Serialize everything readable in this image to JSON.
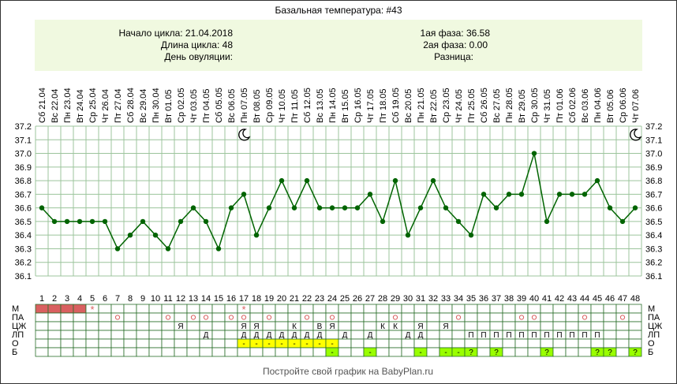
{
  "title": "Базальная температура: #43",
  "info": {
    "cycle_start": "Начало цикла: 21.04.2018",
    "cycle_length": "Длина цикла: 48",
    "ovulation_day": "День овуляции:",
    "phase1": "1ая фаза: 36.58",
    "phase2": "2ая фаза: 0.00",
    "difference": "Разница:"
  },
  "footer": "Постройте свой график на BabyPlan.ru",
  "colors": {
    "line": "#006400",
    "grid": "#9cc49c",
    "info_bg": "#f0f9e0",
    "menses": "#d96060",
    "marker": "#d96060",
    "highlight_yellow": "#ffff00",
    "highlight_green": "#99ff00"
  },
  "moon_icon_days": [
    17,
    48
  ],
  "chart_data": {
    "type": "line",
    "x": [
      1,
      2,
      3,
      4,
      5,
      6,
      7,
      8,
      9,
      10,
      11,
      12,
      13,
      14,
      15,
      16,
      17,
      18,
      19,
      20,
      21,
      22,
      23,
      24,
      25,
      26,
      27,
      28,
      29,
      30,
      31,
      32,
      33,
      34,
      35,
      36,
      37,
      38,
      39,
      40,
      41,
      42,
      43,
      44,
      45,
      46,
      47,
      48
    ],
    "dates": [
      "Сб 21.04",
      "Вс 22.04",
      "Пн 23.04",
      "Вт 24.04",
      "Ср 25.04",
      "Чт 26.04",
      "Пт 27.04",
      "Сб 28.04",
      "Вс 29.04",
      "Пн 30.04",
      "Вт 01.05",
      "Ср 02.05",
      "Чт 03.05",
      "Пт 04.05",
      "Сб 05.05",
      "Вс 06.05",
      "Пн 07.05",
      "Вт 08.05",
      "Ср 09.05",
      "Чт 10.05",
      "Пт 11.05",
      "Сб 12.05",
      "Вс 13.05",
      "Пн 14.05",
      "Вт 15.05",
      "Ср 16.05",
      "Чт 17.05",
      "Пт 18.05",
      "Сб 19.05",
      "Вс 20.05",
      "Пн 21.05",
      "Вт 22.05",
      "Ср 23.05",
      "Чт 24.05",
      "Пт 25.05",
      "Сб 26.05",
      "Вс 27.05",
      "Пн 28.05",
      "Вт 29.05",
      "Ср 30.05",
      "Чт 31.05",
      "Пт 01.06",
      "Сб 02.06",
      "Вс 03.06",
      "Пн 04.06",
      "Вт 05.06",
      "Ср 06.06",
      "Чт 07.06"
    ],
    "values": [
      36.6,
      36.5,
      36.5,
      36.5,
      36.5,
      36.5,
      36.3,
      36.4,
      36.5,
      36.4,
      36.3,
      36.5,
      36.6,
      36.5,
      36.3,
      36.6,
      36.7,
      36.4,
      36.6,
      36.8,
      36.6,
      36.8,
      36.6,
      36.6,
      36.6,
      36.6,
      36.7,
      36.5,
      36.8,
      36.4,
      36.6,
      36.8,
      36.6,
      36.5,
      36.4,
      36.7,
      36.6,
      36.7,
      36.7,
      37.0,
      36.5,
      36.7,
      36.7,
      36.7,
      36.8,
      36.6,
      36.5,
      36.6
    ],
    "y_ticks": [
      "37.2",
      "37.1",
      "37.0",
      "36.9",
      "36.8",
      "36.7",
      "36.6",
      "36.5",
      "36.4",
      "36.3",
      "36.2",
      "36.1"
    ],
    "ylim": [
      36.1,
      37.2
    ],
    "grid": true,
    "table": {
      "rows": [
        {
          "label": "М",
          "cells": {
            "1": "fill",
            "2": "fill",
            "3": "fill",
            "4": "fill",
            "5": "*",
            "17": "*"
          }
        },
        {
          "label": "ПА",
          "cells": {
            "7": "o",
            "11": "o",
            "13": "o",
            "14": "o",
            "16": "o",
            "17": "o",
            "19": "o",
            "22": "o",
            "24": "o",
            "29": "o",
            "34": "o",
            "39": "o",
            "40": "o",
            "44": "o",
            "47": "o"
          }
        },
        {
          "label": "ЦЖ",
          "cells": {
            "12": "Я",
            "17": "Я",
            "18": "Я",
            "21": "К",
            "23": "В",
            "24": "Я",
            "28": "К",
            "29": "К",
            "31": "Я",
            "33": "Я"
          }
        },
        {
          "label": "ЛП",
          "cells": {
            "14": "Д",
            "17": "Д",
            "18": "Д",
            "19": "Д",
            "20": "Д",
            "21": "Д",
            "22": "Д",
            "23": "Д",
            "25": "Д",
            "27": "Д",
            "30": "Д",
            "31": "Д",
            "35": "П",
            "36": "П",
            "37": "П",
            "38": "П",
            "39": "П",
            "40": "П",
            "41": "П",
            "42": "П",
            "43": "П",
            "44": "П",
            "45": "П"
          }
        },
        {
          "label": "О",
          "cells": {
            "17": "-",
            "18": "-",
            "19": "-",
            "20": "-",
            "21": "-",
            "22": "-",
            "23": "-",
            "24": "-"
          }
        },
        {
          "label": "Б",
          "cells": {
            "24": "-",
            "27": "-",
            "31": "-",
            "33": "-",
            "34": "-",
            "35": "?",
            "37": "?",
            "41": "?",
            "45": "?",
            "46": "?",
            "48": "?"
          }
        }
      ]
    }
  }
}
